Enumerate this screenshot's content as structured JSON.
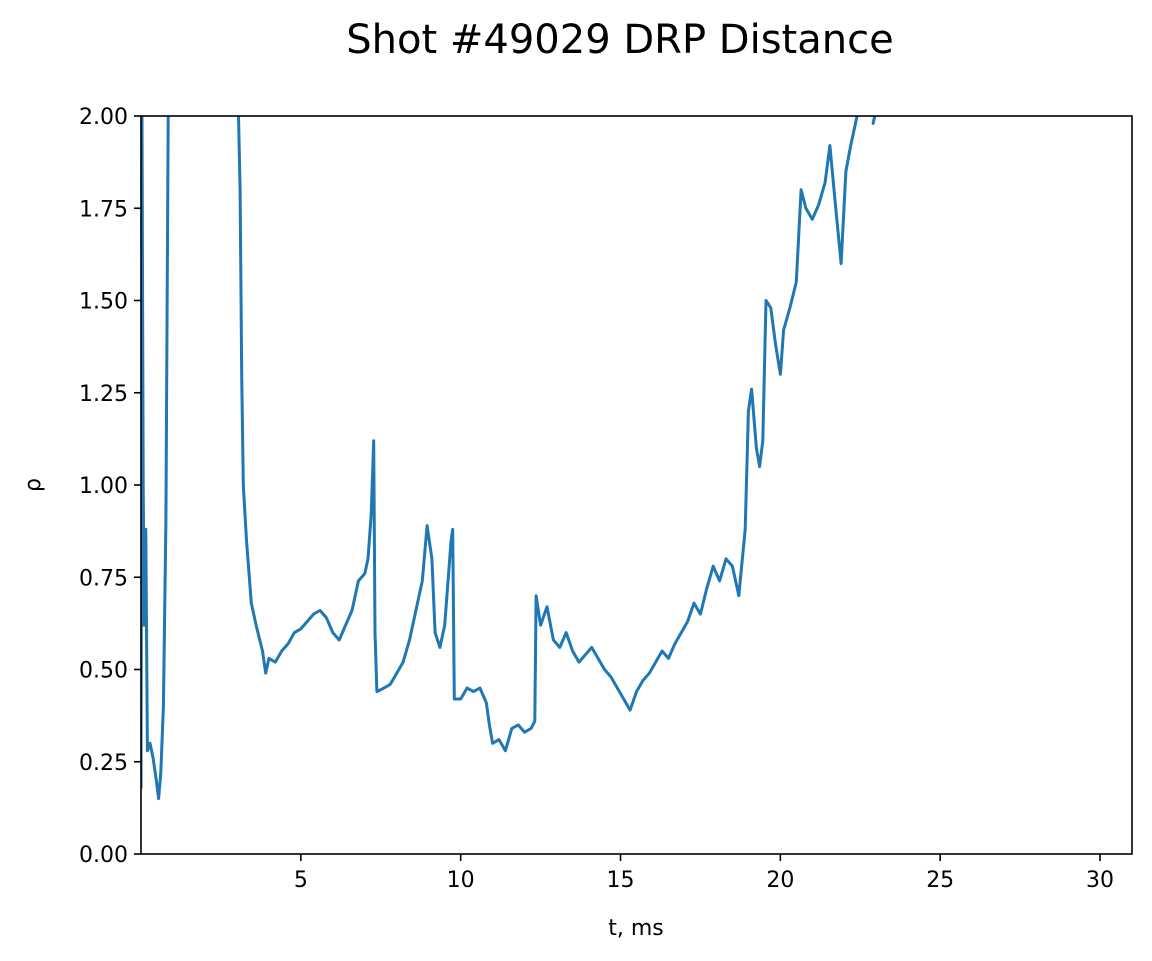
{
  "chart_data": {
    "type": "line",
    "title": "Shot #49029 DRP Distance",
    "xlabel": "t, ms",
    "ylabel": "ρ",
    "xlim": [
      0,
      31
    ],
    "ylim": [
      0,
      2.0
    ],
    "xticks": [
      5,
      10,
      15,
      20,
      25,
      30
    ],
    "xtick_labels": [
      "5",
      "10",
      "15",
      "20",
      "25",
      "30"
    ],
    "yticks": [
      0,
      0.25,
      0.5,
      0.75,
      1.0,
      1.25,
      1.5,
      1.75,
      2.0
    ],
    "ytick_labels": [
      "0.00",
      "0.25",
      "0.50",
      "0.75",
      "1.00",
      "1.25",
      "1.50",
      "1.75",
      "2.00"
    ],
    "grid": false,
    "line_color": "#1f77b4",
    "series": [
      {
        "segments": [
          [
            [
              0.0,
              0.18
            ],
            [
              0.03,
              2.0
            ],
            [
              0.07,
              1.0
            ],
            [
              0.1,
              0.62
            ],
            [
              0.15,
              0.88
            ],
            [
              0.2,
              0.28
            ],
            [
              0.28,
              0.3
            ],
            [
              0.38,
              0.26
            ],
            [
              0.48,
              0.2
            ],
            [
              0.55,
              0.15
            ],
            [
              0.62,
              0.22
            ],
            [
              0.7,
              0.4
            ],
            [
              0.78,
              0.9
            ],
            [
              0.85,
              2.0
            ]
          ],
          [
            [
              3.05,
              2.0
            ],
            [
              3.1,
              1.8
            ],
            [
              3.15,
              1.3
            ],
            [
              3.2,
              1.0
            ],
            [
              3.3,
              0.85
            ],
            [
              3.45,
              0.68
            ],
            [
              3.6,
              0.62
            ],
            [
              3.8,
              0.55
            ],
            [
              3.9,
              0.49
            ],
            [
              4.0,
              0.53
            ],
            [
              4.2,
              0.52
            ],
            [
              4.4,
              0.55
            ],
            [
              4.6,
              0.57
            ],
            [
              4.8,
              0.6
            ],
            [
              5.0,
              0.61
            ],
            [
              5.2,
              0.63
            ],
            [
              5.4,
              0.65
            ],
            [
              5.6,
              0.66
            ],
            [
              5.8,
              0.64
            ],
            [
              6.0,
              0.6
            ],
            [
              6.2,
              0.58
            ],
            [
              6.4,
              0.62
            ],
            [
              6.6,
              0.66
            ],
            [
              6.8,
              0.74
            ],
            [
              7.0,
              0.76
            ],
            [
              7.1,
              0.8
            ],
            [
              7.2,
              0.92
            ],
            [
              7.28,
              1.12
            ],
            [
              7.32,
              0.6
            ],
            [
              7.38,
              0.44
            ],
            [
              7.6,
              0.45
            ],
            [
              7.8,
              0.46
            ],
            [
              8.0,
              0.49
            ],
            [
              8.2,
              0.52
            ],
            [
              8.4,
              0.58
            ],
            [
              8.6,
              0.66
            ],
            [
              8.8,
              0.74
            ],
            [
              8.95,
              0.89
            ],
            [
              9.1,
              0.8
            ],
            [
              9.2,
              0.6
            ],
            [
              9.35,
              0.56
            ],
            [
              9.5,
              0.62
            ],
            [
              9.7,
              0.85
            ],
            [
              9.75,
              0.88
            ],
            [
              9.8,
              0.42
            ],
            [
              10.0,
              0.42
            ],
            [
              10.2,
              0.45
            ],
            [
              10.4,
              0.44
            ],
            [
              10.6,
              0.45
            ],
            [
              10.8,
              0.41
            ],
            [
              10.9,
              0.35
            ],
            [
              11.0,
              0.3
            ],
            [
              11.2,
              0.31
            ],
            [
              11.4,
              0.28
            ],
            [
              11.6,
              0.34
            ],
            [
              11.8,
              0.35
            ],
            [
              12.0,
              0.33
            ],
            [
              12.2,
              0.34
            ],
            [
              12.32,
              0.36
            ],
            [
              12.36,
              0.7
            ],
            [
              12.5,
              0.62
            ],
            [
              12.7,
              0.67
            ],
            [
              12.9,
              0.58
            ],
            [
              13.1,
              0.56
            ],
            [
              13.3,
              0.6
            ],
            [
              13.5,
              0.55
            ],
            [
              13.7,
              0.52
            ],
            [
              13.9,
              0.54
            ],
            [
              14.1,
              0.56
            ],
            [
              14.3,
              0.53
            ],
            [
              14.5,
              0.5
            ],
            [
              14.7,
              0.48
            ],
            [
              14.9,
              0.45
            ],
            [
              15.1,
              0.42
            ],
            [
              15.3,
              0.39
            ],
            [
              15.5,
              0.44
            ],
            [
              15.7,
              0.47
            ],
            [
              15.9,
              0.49
            ],
            [
              16.1,
              0.52
            ],
            [
              16.3,
              0.55
            ],
            [
              16.5,
              0.53
            ],
            [
              16.7,
              0.57
            ],
            [
              16.9,
              0.6
            ],
            [
              17.1,
              0.63
            ],
            [
              17.3,
              0.68
            ],
            [
              17.5,
              0.65
            ],
            [
              17.7,
              0.72
            ],
            [
              17.9,
              0.78
            ],
            [
              18.1,
              0.74
            ],
            [
              18.3,
              0.8
            ],
            [
              18.5,
              0.78
            ],
            [
              18.7,
              0.7
            ],
            [
              18.9,
              0.88
            ],
            [
              19.0,
              1.2
            ],
            [
              19.1,
              1.26
            ],
            [
              19.25,
              1.1
            ],
            [
              19.35,
              1.05
            ],
            [
              19.45,
              1.12
            ],
            [
              19.55,
              1.5
            ],
            [
              19.7,
              1.48
            ],
            [
              19.85,
              1.38
            ],
            [
              20.0,
              1.3
            ],
            [
              20.1,
              1.42
            ],
            [
              20.3,
              1.48
            ],
            [
              20.5,
              1.55
            ],
            [
              20.65,
              1.8
            ],
            [
              20.8,
              1.75
            ],
            [
              21.0,
              1.72
            ],
            [
              21.2,
              1.76
            ],
            [
              21.4,
              1.82
            ],
            [
              21.55,
              1.92
            ],
            [
              21.7,
              1.78
            ],
            [
              21.9,
              1.6
            ],
            [
              22.05,
              1.85
            ],
            [
              22.2,
              1.92
            ],
            [
              22.4,
              2.0
            ]
          ],
          [
            [
              22.9,
              1.98
            ],
            [
              22.95,
              2.0
            ]
          ]
        ]
      }
    ]
  }
}
